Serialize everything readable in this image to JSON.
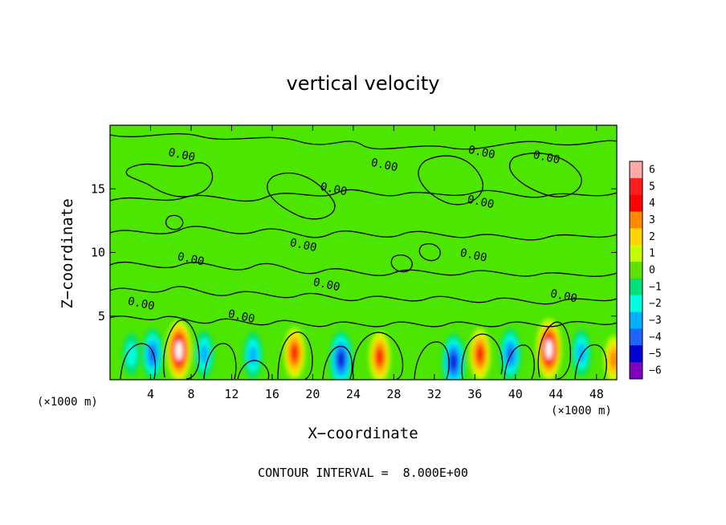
{
  "chart_data": {
    "type": "heatmap",
    "title": "vertical velocity",
    "xlabel": "X−coordinate",
    "ylabel": "Z−coordinate",
    "x_unit_label": "(×1000 m)",
    "y_unit_label": "(×1000 m)",
    "xlim": [
      0,
      50
    ],
    "ylim": [
      0,
      20
    ],
    "x_ticks": [
      4,
      8,
      12,
      16,
      20,
      24,
      28,
      32,
      36,
      40,
      44,
      48
    ],
    "y_ticks": [
      5,
      10,
      15
    ],
    "colorbar": {
      "ticks": [
        6,
        5,
        4,
        3,
        2,
        1,
        0,
        -1,
        -2,
        -3,
        -4,
        -5,
        -6
      ],
      "tick_labels": [
        "6",
        "5",
        "4",
        "3",
        "2",
        "1",
        "0",
        "−1",
        "−2",
        "−3",
        "−4",
        "−5",
        "−6"
      ],
      "range": [
        -6,
        6
      ],
      "colors": [
        "#ffa8a8",
        "#ff1e1e",
        "#ff0000",
        "#ff8a00",
        "#ffd400",
        "#c8ff00",
        "#5ee000",
        "#00e07a",
        "#00ffe0",
        "#00b0ff",
        "#1e64ff",
        "#0000d0",
        "#8000c0"
      ]
    },
    "contour_labels": [
      {
        "x": 7,
        "z": 17.4,
        "text": "0.00"
      },
      {
        "x": 27,
        "z": 16.6,
        "text": "0.00"
      },
      {
        "x": 22,
        "z": 14.7,
        "text": "0.00"
      },
      {
        "x": 36.6,
        "z": 17.6,
        "text": "0.00"
      },
      {
        "x": 43,
        "z": 17.2,
        "text": "0.00"
      },
      {
        "x": 36.5,
        "z": 13.7,
        "text": "0.00"
      },
      {
        "x": 19,
        "z": 10.3,
        "text": "0.00"
      },
      {
        "x": 7.9,
        "z": 9.2,
        "text": "0.00"
      },
      {
        "x": 35.8,
        "z": 9.5,
        "text": "0.00"
      },
      {
        "x": 21.3,
        "z": 7.2,
        "text": "0.00"
      },
      {
        "x": 3,
        "z": 5.7,
        "text": "0.00"
      },
      {
        "x": 12.9,
        "z": 4.7,
        "text": "0.00"
      },
      {
        "x": 44.7,
        "z": 6.3,
        "text": "0.00"
      }
    ],
    "updraft_cores": [
      {
        "x": 6.8,
        "z": 2.3,
        "w": 6
      },
      {
        "x": 18.2,
        "z": 2.1,
        "w": 4
      },
      {
        "x": 26.6,
        "z": 1.8,
        "w": 4
      },
      {
        "x": 36.5,
        "z": 2.0,
        "w": 4
      },
      {
        "x": 43.3,
        "z": 2.4,
        "w": 6
      },
      {
        "x": 49.7,
        "z": 1.6,
        "w": 3
      }
    ],
    "downdraft_cores": [
      {
        "x": 2.1,
        "z": 2.0,
        "w": -2
      },
      {
        "x": 4.2,
        "z": 2.0,
        "w": -4
      },
      {
        "x": 9.3,
        "z": 2.0,
        "w": -3
      },
      {
        "x": 14.1,
        "z": 1.9,
        "w": -3
      },
      {
        "x": 22.8,
        "z": 1.6,
        "w": -5
      },
      {
        "x": 33.9,
        "z": 1.4,
        "w": -5
      },
      {
        "x": 39.5,
        "z": 2.0,
        "w": -4
      },
      {
        "x": 46.5,
        "z": 2.1,
        "w": -3
      }
    ],
    "note": "CONTOUR INTERVAL =  8.000E+00"
  }
}
